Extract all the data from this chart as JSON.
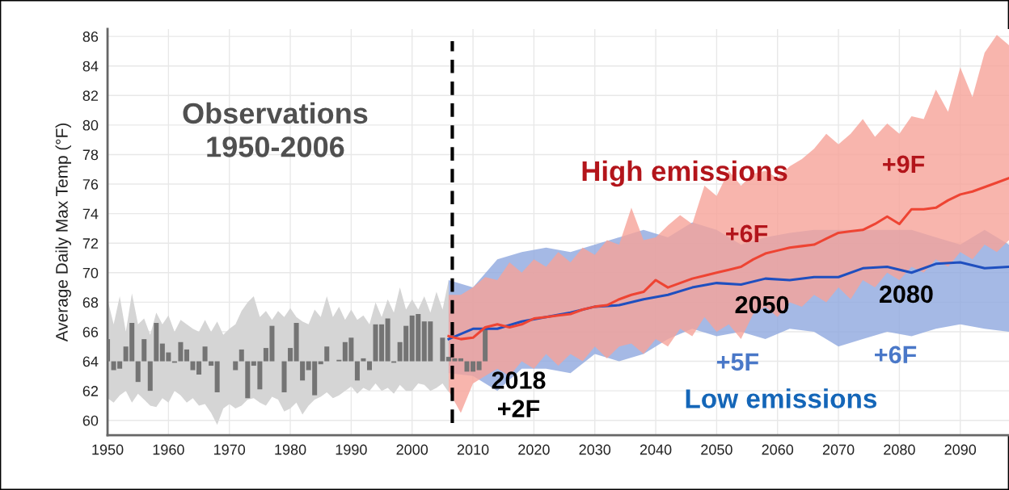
{
  "chart_data": {
    "type": "line",
    "ylabel": "Average Daily Max Temp (°F)",
    "xlim": [
      1950,
      2098
    ],
    "ylim": [
      59.0,
      86.5
    ],
    "xticks": [
      1950,
      1960,
      1970,
      1980,
      1990,
      2000,
      2010,
      2020,
      2030,
      2040,
      2050,
      2060,
      2070,
      2080,
      2090
    ],
    "yticks": [
      60,
      62,
      64,
      66,
      68,
      70,
      72,
      74,
      76,
      78,
      80,
      82,
      84,
      86
    ],
    "grid": true,
    "legend": false,
    "series": [
      {
        "type": "bar",
        "color": "#747474",
        "x": [
          1950,
          1951,
          1952,
          1953,
          1954,
          1955,
          1956,
          1957,
          1958,
          1959,
          1960,
          1961,
          1962,
          1963,
          1964,
          1965,
          1966,
          1967,
          1968,
          1969,
          1970,
          1971,
          1972,
          1973,
          1974,
          1975,
          1976,
          1977,
          1978,
          1979,
          1980,
          1981,
          1982,
          1983,
          1984,
          1985,
          1986,
          1987,
          1988,
          1989,
          1990,
          1991,
          1992,
          1993,
          1994,
          1995,
          1996,
          1997,
          1998,
          1999,
          2000,
          2001,
          2002,
          2003,
          2004,
          2005,
          2006,
          2007,
          2008,
          2009,
          2010,
          2011,
          2012
        ],
        "base": [
          64,
          64,
          64,
          64,
          64,
          64,
          64,
          64,
          64,
          64,
          64,
          64,
          64,
          64,
          64,
          64,
          64,
          64,
          64,
          null,
          null,
          64,
          64,
          64,
          64,
          64,
          64,
          64,
          null,
          64,
          64,
          64,
          64,
          64,
          64,
          64,
          64,
          null,
          64,
          64,
          64,
          64,
          64,
          64,
          64,
          64,
          64,
          64,
          64,
          64,
          64,
          64,
          64,
          64,
          null,
          64,
          64,
          64,
          64,
          64,
          64,
          64,
          64
        ],
        "values": [
          1.5,
          -0.6,
          -0.5,
          1.0,
          2.6,
          -1.4,
          1.5,
          -2.0,
          2.6,
          1.2,
          0.6,
          -0.1,
          1.3,
          0.8,
          -0.6,
          -0.9,
          1.0,
          -0.3,
          -2.1,
          null,
          null,
          -0.6,
          0.8,
          -2.5,
          -0.3,
          -1.9,
          0.9,
          2.4,
          null,
          -2.1,
          0.9,
          2.6,
          -1.3,
          -0.6,
          -2.3,
          -0.2,
          1.0,
          null,
          0.1,
          1.3,
          1.6,
          -1.3,
          0.2,
          -0.6,
          2.5,
          2.5,
          2.9,
          -0.1,
          1.3,
          2.4,
          3.1,
          3.2,
          2.7,
          2.7,
          null,
          1.6,
          0.3,
          0.2,
          0.2,
          -0.7,
          -0.7,
          -0.6,
          2.2
        ]
      },
      {
        "color": "#747474",
        "x": [
          1950,
          1951,
          1952,
          1953,
          1954,
          1955,
          1956,
          1957,
          1958,
          1959,
          1960,
          1961,
          1962,
          1963,
          1964,
          1965,
          1966,
          1967,
          1968,
          1969,
          1970,
          1971,
          1972,
          1973,
          1974,
          1975,
          1976,
          1977,
          1978,
          1979,
          1980,
          1981,
          1982,
          1983,
          1984,
          1985,
          1986,
          1987,
          1988,
          1989,
          1990,
          1991,
          1992,
          1993,
          1994,
          1995,
          1996,
          1997,
          1998,
          1999,
          2000,
          2001,
          2002,
          2003,
          2004,
          2005,
          2006
        ],
        "values": [
          null,
          null,
          null,
          null,
          null,
          null,
          null,
          null,
          null,
          null,
          null,
          null,
          null,
          null,
          null,
          null,
          null,
          null,
          null,
          null,
          null,
          null,
          null,
          null,
          null,
          null,
          null,
          null,
          null,
          null,
          null,
          null,
          null,
          null,
          null,
          null,
          null,
          null,
          null,
          null,
          null,
          null,
          null,
          null,
          null,
          null,
          null,
          null,
          null,
          null,
          null,
          null,
          null,
          null,
          null,
          null,
          null
        ],
        "upper": [
          68.2,
          66.5,
          68.4,
          66.0,
          68.6,
          66.5,
          66.9,
          65.8,
          67.3,
          66.5,
          67.1,
          66.0,
          66.8,
          66.5,
          66.2,
          66.0,
          66.8,
          66.0,
          66.7,
          65.8,
          66.2,
          66.5,
          67.4,
          68.0,
          68.4,
          67.0,
          67.4,
          66.8,
          67.4,
          67.0,
          67.6,
          67.0,
          66.7,
          66.5,
          67.5,
          67.0,
          68.4,
          67.0,
          67.7,
          66.8,
          67.5,
          66.8,
          67.1,
          66.5,
          68.0,
          67.0,
          68.2,
          67.3,
          69.0,
          67.5,
          68.2,
          67.5,
          68.4,
          67.3,
          68.7,
          67.5,
          69.5
        ],
        "lower": [
          61.5,
          61.2,
          61.7,
          62.0,
          61.2,
          61.8,
          61.4,
          61.0,
          60.9,
          61.5,
          61.2,
          62.0,
          61.7,
          61.2,
          61.5,
          61.0,
          61.1,
          60.5,
          59.7,
          60.8,
          61.1,
          60.8,
          61.0,
          61.4,
          61.5,
          61.2,
          61.0,
          61.6,
          61.4,
          60.6,
          60.8,
          61.2,
          60.4,
          61.0,
          61.4,
          61.6,
          61.9,
          61.5,
          61.7,
          62.0,
          62.3,
          61.8,
          62.2,
          62.0,
          62.5,
          62.0,
          62.2,
          61.8,
          62.4,
          62.0,
          62.0,
          62.5,
          62.4,
          62.0,
          62.2,
          62.5,
          61.9
        ]
      },
      {
        "color": "#1f4fbf",
        "x": [
          2006,
          2010,
          2014,
          2018,
          2022,
          2026,
          2030,
          2034,
          2038,
          2042,
          2046,
          2050,
          2054,
          2058,
          2062,
          2066,
          2070,
          2074,
          2078,
          2082,
          2086,
          2090,
          2094,
          2098
        ],
        "values": [
          65.5,
          66.2,
          66.2,
          66.7,
          67.0,
          67.3,
          67.7,
          67.8,
          68.2,
          68.5,
          69.0,
          69.3,
          69.2,
          69.6,
          69.5,
          69.7,
          69.7,
          70.3,
          70.4,
          70.0,
          70.6,
          70.7,
          70.3,
          70.4
        ],
        "upper": [
          69.5,
          69.0,
          70.9,
          71.4,
          71.7,
          71.4,
          71.9,
          72.4,
          72.9,
          72.4,
          73.4,
          72.9,
          71.9,
          72.4,
          72.7,
          72.9,
          72.9,
          72.9,
          72.9,
          72.9,
          72.4,
          71.9,
          72.9,
          71.9
        ],
        "lower": [
          63.2,
          63.0,
          62.0,
          63.5,
          63.5,
          63.2,
          64.5,
          64.0,
          64.5,
          65.5,
          66.2,
          65.7,
          66.0,
          65.5,
          66.2,
          66.0,
          65.0,
          65.5,
          66.0,
          65.7,
          66.2,
          66.5,
          66.2,
          66.0
        ]
      },
      {
        "color": "#ee4433",
        "x": [
          2006,
          2008,
          2010,
          2012,
          2014,
          2016,
          2018,
          2020,
          2022,
          2024,
          2026,
          2028,
          2030,
          2032,
          2034,
          2036,
          2038,
          2040,
          2042,
          2044,
          2046,
          2048,
          2050,
          2052,
          2054,
          2056,
          2058,
          2060,
          2062,
          2064,
          2066,
          2068,
          2070,
          2072,
          2074,
          2076,
          2078,
          2080,
          2082,
          2084,
          2086,
          2088,
          2090,
          2092,
          2094,
          2096,
          2098
        ],
        "values": [
          65.7,
          65.5,
          65.6,
          66.3,
          66.5,
          66.3,
          66.5,
          66.9,
          67.0,
          67.1,
          67.2,
          67.5,
          67.7,
          67.8,
          68.2,
          68.5,
          68.7,
          69.5,
          69.0,
          69.3,
          69.6,
          69.8,
          70.0,
          70.2,
          70.4,
          70.9,
          71.3,
          71.5,
          71.7,
          71.8,
          71.9,
          72.3,
          72.7,
          72.8,
          72.9,
          73.3,
          73.8,
          73.3,
          74.3,
          74.3,
          74.4,
          74.9,
          75.3,
          75.5,
          75.8,
          76.1,
          76.4
        ],
        "upper": [
          68.5,
          68.5,
          69.0,
          69.7,
          69.5,
          70.7,
          70.0,
          70.9,
          70.4,
          71.4,
          70.7,
          71.7,
          71.2,
          72.2,
          71.9,
          74.4,
          72.2,
          72.4,
          73.2,
          73.9,
          73.3,
          75.9,
          75.2,
          76.9,
          75.9,
          76.7,
          76.9,
          76.4,
          77.2,
          77.7,
          78.4,
          79.4,
          78.7,
          79.4,
          80.4,
          79.2,
          80.1,
          79.4,
          80.6,
          80.4,
          82.4,
          80.9,
          83.9,
          81.9,
          84.9,
          86.1,
          85.4
        ],
        "lower": [
          62.0,
          60.5,
          62.5,
          63.0,
          63.5,
          63.0,
          64.0,
          63.5,
          64.5,
          63.7,
          64.5,
          64.0,
          65.0,
          64.2,
          65.0,
          65.2,
          64.5,
          65.5,
          65.0,
          66.2,
          65.7,
          67.0,
          66.0,
          66.5,
          65.5,
          67.2,
          67.7,
          67.0,
          68.0,
          67.7,
          68.5,
          68.0,
          69.0,
          68.2,
          69.5,
          69.0,
          70.0,
          69.5,
          70.4,
          70.0,
          70.9,
          70.4,
          71.4,
          70.9,
          71.9,
          71.4,
          72.2
        ]
      }
    ],
    "ref_lines": [
      {
        "axis": "x",
        "value": 2006.6,
        "label": null,
        "color": "#000000",
        "line_style": "dashed"
      }
    ],
    "annotations": [
      "Observations\n1950-2006",
      "High emissions",
      "+9F",
      "+6F",
      "2050",
      "2080",
      "+5F",
      "+6F",
      "Low emissions",
      "2018\n+2F"
    ]
  }
}
